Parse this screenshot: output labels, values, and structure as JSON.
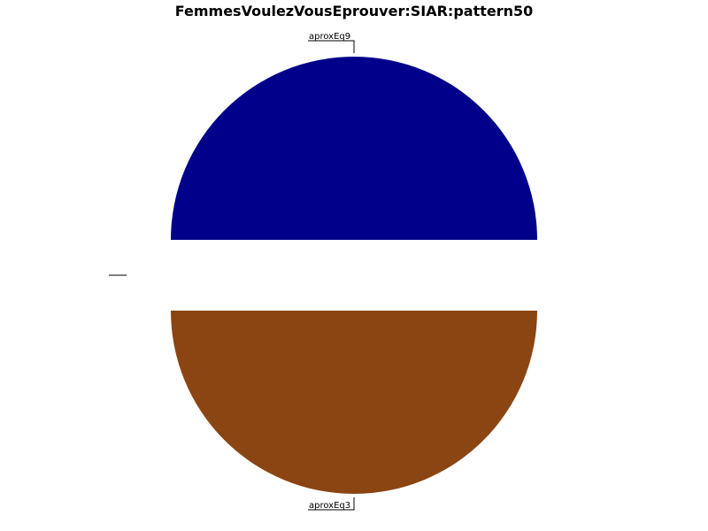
{
  "chart_data": {
    "type": "pie",
    "title": "FemmesVoulezVousEprouver:SIAR:pattern50",
    "categories": [
      "aproxEq3",
      "aproxEq9",
      "",
      ""
    ],
    "values": [
      50,
      50,
      0,
      0
    ],
    "colors": [
      "#8B4513",
      "#00008B",
      "#000000",
      "#000000"
    ],
    "start": "left, counter-clockwise",
    "exploded": true,
    "legend": "none"
  }
}
